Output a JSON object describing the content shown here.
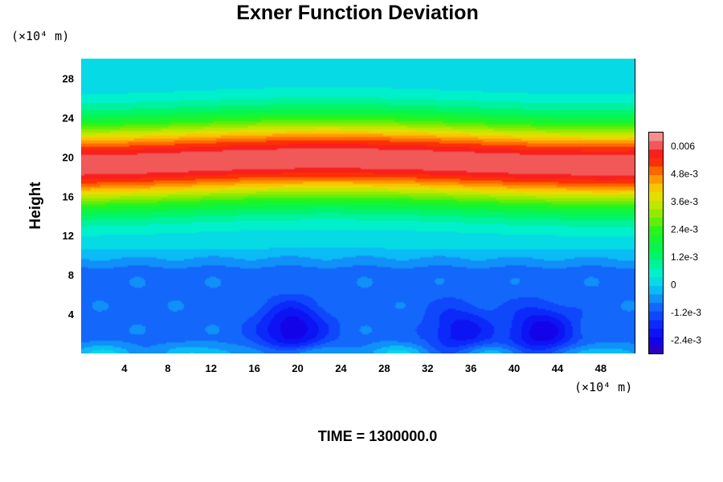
{
  "chart_data": {
    "type": "heatmap",
    "title": "Exner Function Deviation",
    "ylabel": "Height",
    "x_unit": "(×10⁴ m)",
    "y_unit": "(×10⁴ m)",
    "xlim": [
      0,
      51.2
    ],
    "ylim": [
      0,
      30
    ],
    "x_ticks": [
      4,
      8,
      12,
      16,
      20,
      24,
      28,
      32,
      36,
      40,
      44,
      48
    ],
    "y_ticks": [
      4,
      8,
      12,
      16,
      20,
      24,
      28
    ],
    "colorbar": {
      "range": [
        -0.003,
        0.0066
      ],
      "labels": [
        {
          "value": 0.006,
          "text": "0.006"
        },
        {
          "value": 0.0048,
          "text": "4.8e-3"
        },
        {
          "value": 0.0036,
          "text": "3.6e-3"
        },
        {
          "value": 0.0024,
          "text": "2.4e-3"
        },
        {
          "value": 0.0012,
          "text": "1.2e-3"
        },
        {
          "value": 0,
          "text": "0"
        },
        {
          "value": -0.0012,
          "text": "-1.2e-3"
        },
        {
          "value": -0.0024,
          "text": "-2.4e-3"
        }
      ]
    },
    "field": {
      "description_of_features": "horizontally banded field: max near height 19.5, low-amplitude negative region below height 10 with local minima",
      "peak_height": 19.5,
      "peak_value": 0.0062,
      "minima": [
        {
          "x": 19.5,
          "y": 2.5,
          "value": -0.0026
        },
        {
          "x": 35,
          "y": 2.3,
          "value": -0.0021
        },
        {
          "x": 42.5,
          "y": 2.2,
          "value": -0.0025
        }
      ]
    }
  },
  "footer": {
    "time_label": "TIME = 1300000.0"
  }
}
